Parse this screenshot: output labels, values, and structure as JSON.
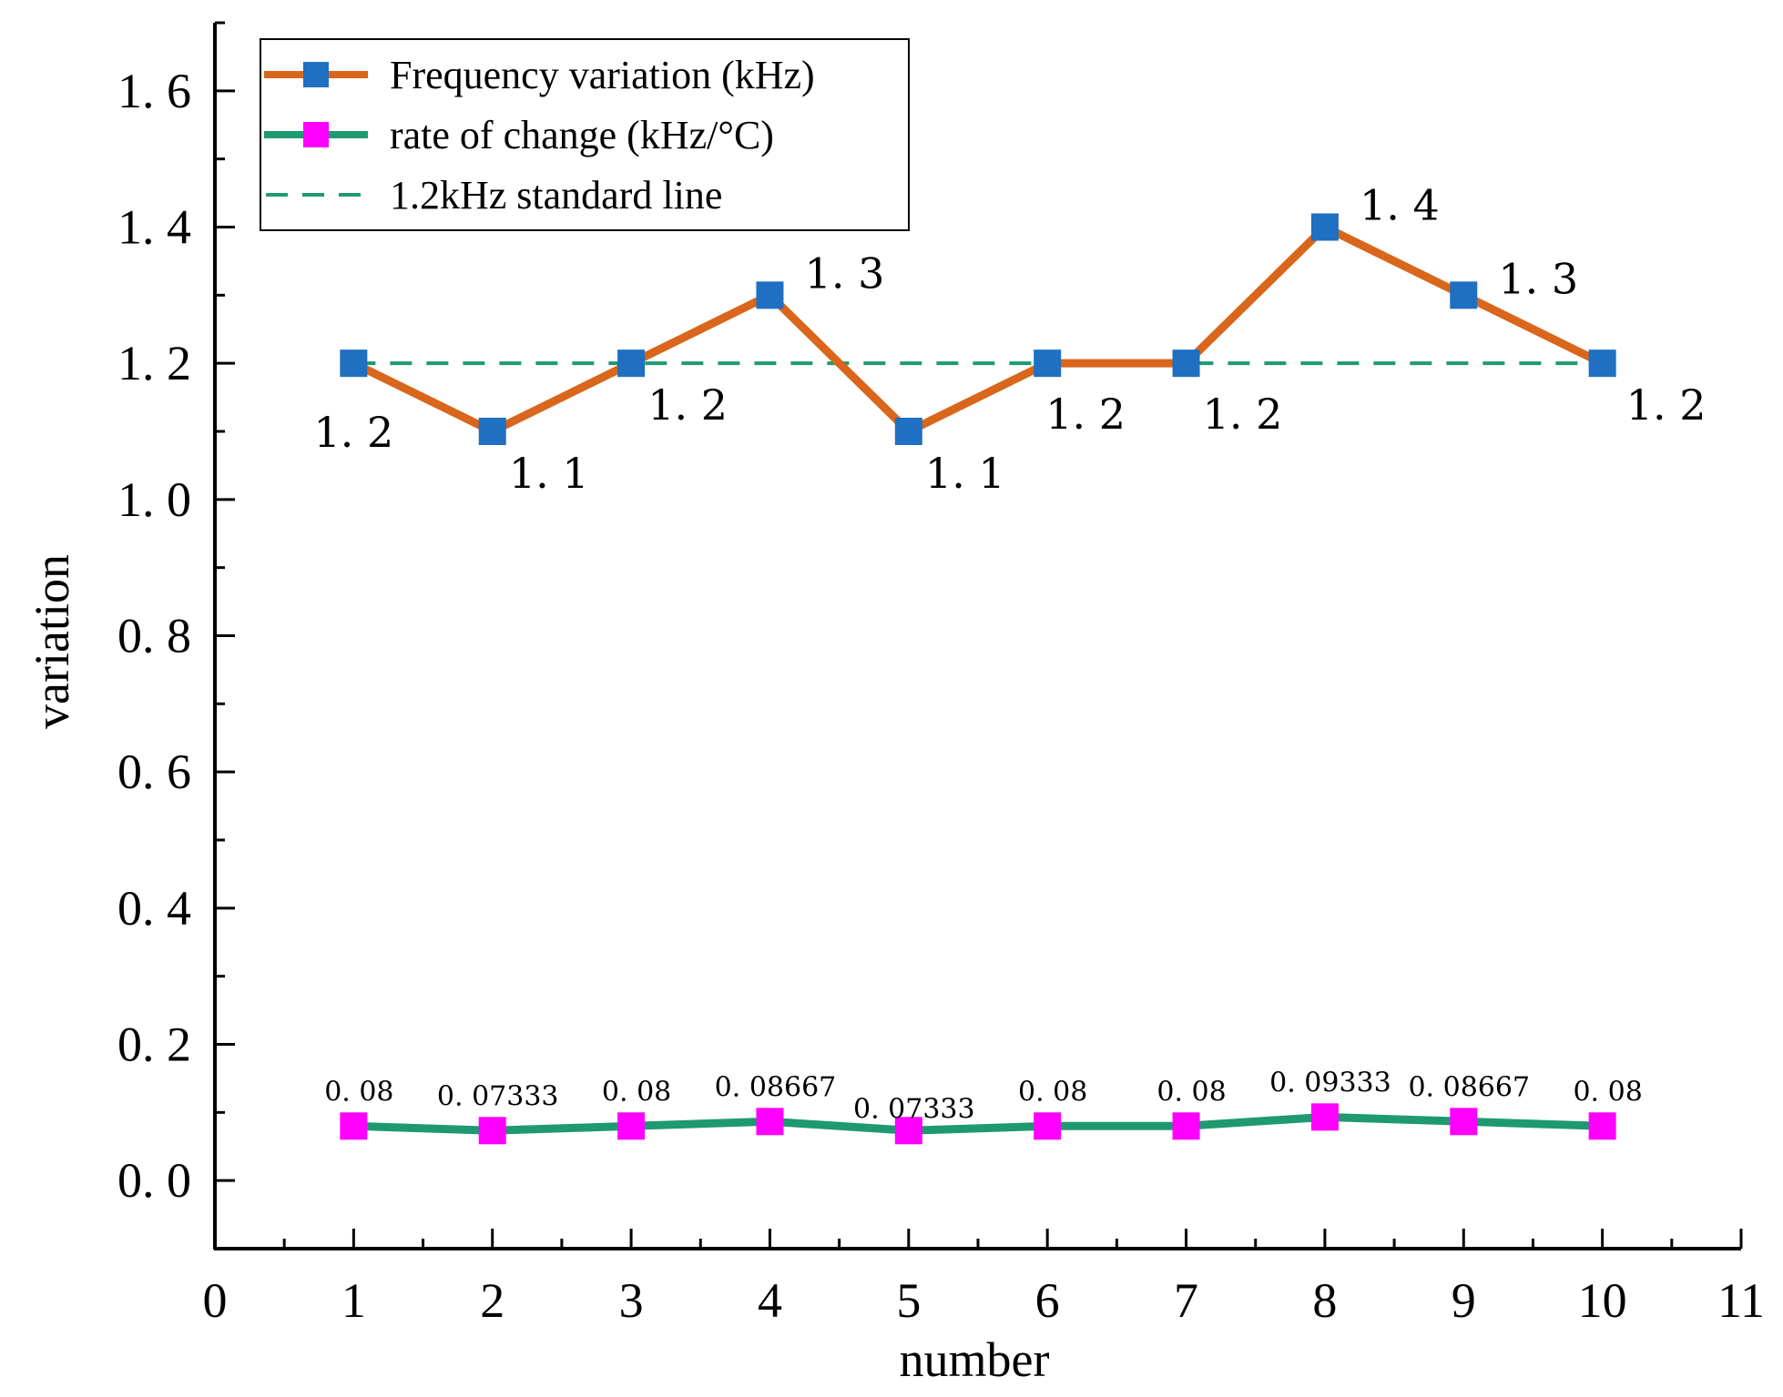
{
  "chart_data": {
    "type": "line",
    "title": "",
    "xlabel": "number",
    "ylabel": "variation",
    "xlim": [
      0,
      11
    ],
    "ylim": [
      -0.1,
      1.7
    ],
    "x_ticks": [
      "0",
      "1",
      "2",
      "3",
      "4",
      "5",
      "6",
      "7",
      "8",
      "9",
      "10",
      "11"
    ],
    "y_ticks": [
      "0.0",
      "0.2",
      "0.4",
      "0.6",
      "0.8",
      "1.0",
      "1.2",
      "1.4",
      "1.6"
    ],
    "x": [
      1,
      2,
      3,
      4,
      5,
      6,
      7,
      8,
      9,
      10
    ],
    "series": [
      {
        "name": "Frequency variation (kHz)",
        "line_color": "#d9661a",
        "marker_color": "#1f6fc2",
        "values": [
          1.2,
          1.1,
          1.2,
          1.3,
          1.1,
          1.2,
          1.2,
          1.4,
          1.3,
          1.2
        ],
        "labels": [
          "1.2",
          "1.1",
          "1.2",
          "1.3",
          "1.1",
          "1.2",
          "1.2",
          "1.4",
          "1.3",
          "1.2"
        ]
      },
      {
        "name": "rate of change (kHz/°C)",
        "line_color": "#1f9a70",
        "marker_color": "#ff00ff",
        "values": [
          0.08,
          0.07333,
          0.08,
          0.08667,
          0.07333,
          0.08,
          0.08,
          0.09333,
          0.08667,
          0.08
        ],
        "labels": [
          "0.08",
          "0.07333",
          "0.08",
          "0.08667",
          "0.07333",
          "0.08",
          "0.08",
          "0.09333",
          "0.08667",
          "0.08"
        ]
      }
    ],
    "reference_line": {
      "name": "1.2kHz standard line",
      "value": 1.2,
      "x_range": [
        1,
        10
      ],
      "color": "#1f9a70",
      "style": "dashed"
    },
    "legend_position": "top-left",
    "grid": false
  }
}
